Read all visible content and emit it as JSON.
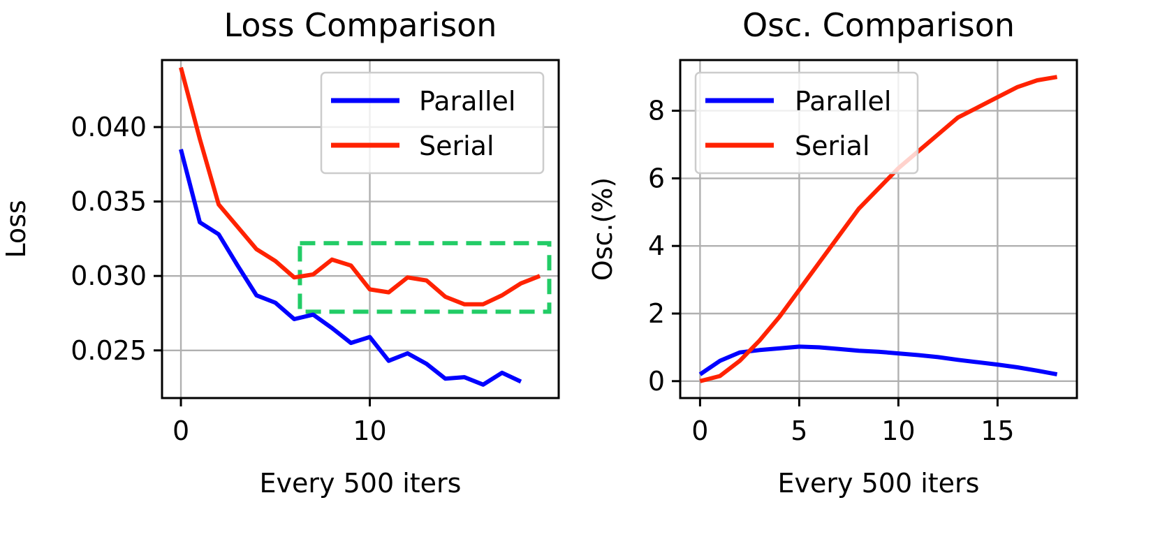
{
  "chart_data": [
    {
      "type": "line",
      "title": "Loss Comparison",
      "xlabel": "Every 500 iters",
      "ylabel": "Loss",
      "xlim": [
        -1,
        20
      ],
      "ylim": [
        0.0218,
        0.0445
      ],
      "xticks": [
        0,
        10
      ],
      "xtick_labels": [
        "0",
        "10"
      ],
      "yticks": [
        0.025,
        0.03,
        0.035,
        0.04
      ],
      "ytick_labels": [
        "0.025",
        "0.030",
        "0.035",
        "0.040"
      ],
      "grid": true,
      "legend_position": "top-right",
      "series": [
        {
          "name": "Parallel",
          "color": "#0000ff",
          "x": [
            0,
            1,
            2,
            3,
            4,
            5,
            6,
            7,
            8,
            9,
            10,
            11,
            12,
            13,
            14,
            15,
            16,
            17,
            18
          ],
          "values": [
            0.0385,
            0.0336,
            0.0328,
            0.0307,
            0.0287,
            0.0282,
            0.0271,
            0.0274,
            0.0265,
            0.0255,
            0.0259,
            0.0243,
            0.0248,
            0.0241,
            0.0231,
            0.0232,
            0.0227,
            0.0235,
            0.0229
          ]
        },
        {
          "name": "Serial",
          "color": "#ff2200",
          "x": [
            0,
            1,
            2,
            3,
            4,
            5,
            6,
            7,
            8,
            9,
            10,
            11,
            12,
            13,
            14,
            15,
            16,
            17,
            18,
            19
          ],
          "values": [
            0.044,
            0.0392,
            0.0348,
            0.0333,
            0.0318,
            0.031,
            0.0299,
            0.0301,
            0.0311,
            0.0307,
            0.0291,
            0.0289,
            0.0299,
            0.0297,
            0.0286,
            0.0281,
            0.0281,
            0.0287,
            0.0295,
            0.03
          ]
        }
      ],
      "annotations": [
        {
          "type": "dashed-rect",
          "color": "#22cc66",
          "x_range": [
            6.3,
            19.5
          ],
          "y_range": [
            0.0276,
            0.0322
          ]
        }
      ]
    },
    {
      "type": "line",
      "title": "Osc. Comparison",
      "xlabel": "Every 500 iters",
      "ylabel": "Osc.(%)",
      "xlim": [
        -1,
        19
      ],
      "ylim": [
        -0.5,
        9.5
      ],
      "xticks": [
        0,
        5,
        10,
        15
      ],
      "xtick_labels": [
        "0",
        "5",
        "10",
        "15"
      ],
      "yticks": [
        0,
        2,
        4,
        6,
        8
      ],
      "ytick_labels": [
        "0",
        "2",
        "4",
        "6",
        "8"
      ],
      "grid": true,
      "legend_position": "top-left",
      "series": [
        {
          "name": "Parallel",
          "color": "#0000ff",
          "x": [
            0,
            1,
            2,
            3,
            4,
            5,
            6,
            7,
            8,
            9,
            10,
            11,
            12,
            13,
            14,
            15,
            16,
            17,
            18
          ],
          "values": [
            0.2,
            0.6,
            0.85,
            0.92,
            0.97,
            1.02,
            1.0,
            0.95,
            0.9,
            0.87,
            0.82,
            0.77,
            0.71,
            0.63,
            0.56,
            0.49,
            0.41,
            0.31,
            0.2
          ]
        },
        {
          "name": "Serial",
          "color": "#ff2200",
          "x": [
            0,
            1,
            2,
            3,
            4,
            5,
            6,
            7,
            8,
            9,
            10,
            11,
            12,
            13,
            14,
            15,
            16,
            17,
            18
          ],
          "values": [
            0.0,
            0.15,
            0.6,
            1.2,
            1.9,
            2.7,
            3.5,
            4.3,
            5.1,
            5.7,
            6.3,
            6.8,
            7.3,
            7.8,
            8.1,
            8.4,
            8.7,
            8.9,
            9.0
          ]
        }
      ],
      "annotations": []
    }
  ]
}
